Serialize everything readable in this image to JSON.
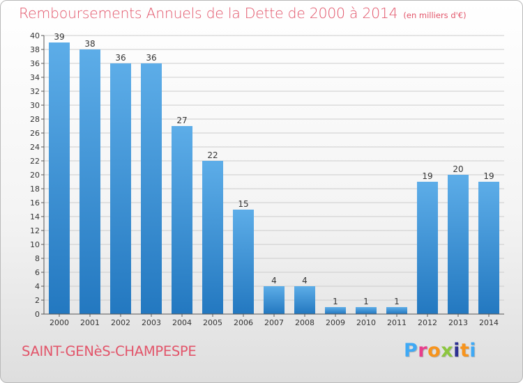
{
  "header": {
    "title": "Remboursements Annuels de la Dette de 2000 à 2014",
    "unit": "(en milliers d'€)"
  },
  "footer": {
    "city": "SAINT-GENèS-CHAMPESPE",
    "logo": "Proxiti",
    "logo_colors": [
      "#3fa9f5",
      "#e83e8c",
      "#f7941d",
      "#8cc63f",
      "#2e3192",
      "#f7941d",
      "#3fa9f5"
    ]
  },
  "colors": {
    "bar_light": "#5dade8",
    "bar_dark": "#2378c0",
    "title": "#e2556a",
    "axis": "#555555",
    "grid": "#cccccc"
  },
  "chart_data": {
    "type": "bar",
    "categories": [
      "2000",
      "2001",
      "2002",
      "2003",
      "2004",
      "2005",
      "2006",
      "2007",
      "2008",
      "2009",
      "2010",
      "2011",
      "2012",
      "2013",
      "2014"
    ],
    "values": [
      39,
      38,
      36,
      36,
      27,
      22,
      15,
      4,
      4,
      1,
      1,
      1,
      19,
      20,
      19
    ],
    "y_ticks": [
      "0",
      "2",
      "4",
      "6",
      "8",
      "10",
      "12",
      "14",
      "16",
      "18",
      "20",
      "22",
      "24",
      "26",
      "28",
      "30",
      "32",
      "34",
      "36",
      "38",
      "40"
    ],
    "title": "Remboursements Annuels de la Dette de 2000 à 2014",
    "ylim": [
      0,
      40
    ],
    "grid": true,
    "data_labels": true
  }
}
